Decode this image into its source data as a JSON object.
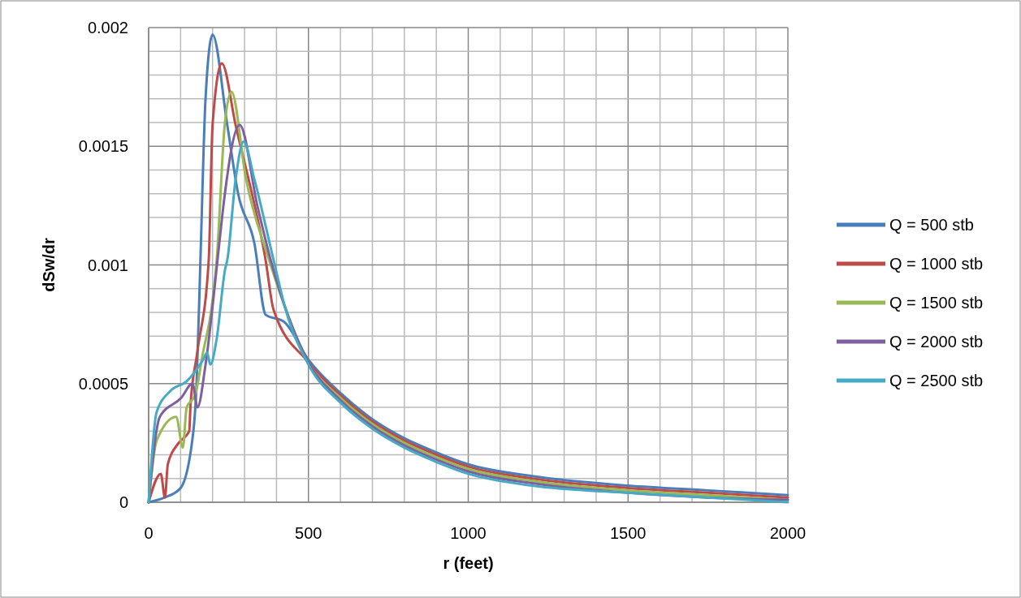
{
  "chart_data": {
    "type": "line",
    "xlabel": "r (feet)",
    "ylabel": "dSw/dr",
    "xlim": [
      0,
      2000
    ],
    "ylim": [
      0,
      0.002
    ],
    "xticks": [
      0,
      {
        "value": 100,
        "label": null
      },
      {
        "value": 200,
        "label": null
      },
      {
        "value": 300,
        "label": null
      },
      {
        "value": 400,
        "label": null
      },
      500,
      {
        "value": 600,
        "label": null
      },
      {
        "value": 700,
        "label": null
      },
      {
        "value": 800,
        "label": null
      },
      {
        "value": 900,
        "label": null
      },
      1000,
      {
        "value": 1100,
        "label": null
      },
      {
        "value": 1200,
        "label": null
      },
      {
        "value": 1300,
        "label": null
      },
      {
        "value": 1400,
        "label": null
      },
      1500,
      {
        "value": 1600,
        "label": null
      },
      {
        "value": 1700,
        "label": null
      },
      {
        "value": 1800,
        "label": null
      },
      {
        "value": 1900,
        "label": null
      },
      2000
    ],
    "yticks": [
      0,
      {
        "value": 0.0001,
        "label": null
      },
      {
        "value": 0.0002,
        "label": null
      },
      {
        "value": 0.0003,
        "label": null
      },
      {
        "value": 0.0004,
        "label": null
      },
      0.0005,
      {
        "value": 0.0006,
        "label": null
      },
      {
        "value": 0.0007,
        "label": null
      },
      {
        "value": 0.0008,
        "label": null
      },
      {
        "value": 0.0009,
        "label": null
      },
      0.001,
      {
        "value": 0.0011,
        "label": null
      },
      {
        "value": 0.0012,
        "label": null
      },
      {
        "value": 0.0013,
        "label": null
      },
      {
        "value": 0.0014,
        "label": null
      },
      0.0015,
      {
        "value": 0.0016,
        "label": null
      },
      {
        "value": 0.0017,
        "label": null
      },
      {
        "value": 0.0018,
        "label": null
      },
      {
        "value": 0.0019,
        "label": null
      },
      0.002
    ],
    "grid": true,
    "legend": "right",
    "marker": "none",
    "line_style": "solid",
    "series": [
      {
        "name": "Q = 500 stb",
        "color": "#4a7ebb",
        "x": [
          0,
          50,
          100,
          140,
          150,
          162,
          178,
          200,
          246,
          280,
          331,
          366,
          424,
          500,
          600,
          700,
          800,
          900,
          1000,
          1200,
          1500,
          1750,
          2000
        ],
        "values": [
          0,
          2e-05,
          6e-05,
          0.0003,
          0.0005,
          0.00102,
          0.0017,
          0.00197,
          0.00159,
          0.0013,
          0.00109,
          0.00079,
          0.00076,
          0.0006,
          0.00046,
          0.00035,
          0.00027,
          0.00021,
          0.00016,
          0.00011,
          7e-05,
          5e-05,
          3e-05
        ]
      },
      {
        "name": "Q = 1000 stb",
        "color": "#be4b48",
        "x": [
          0,
          38,
          51,
          60,
          94,
          127,
          131,
          152,
          188,
          200,
          229,
          272,
          366,
          391,
          500,
          600,
          700,
          800,
          900,
          1000,
          1200,
          1500,
          1750,
          2000
        ],
        "values": [
          0,
          0.00012,
          2e-05,
          0.00016,
          0.00025,
          0.0003,
          0.00041,
          0.00063,
          0.00102,
          0.00159,
          0.00185,
          0.00159,
          0.00102,
          0.00081,
          0.00059,
          0.00045,
          0.00034,
          0.00026,
          0.0002,
          0.00015,
          0.0001,
          6e-05,
          4e-05,
          2e-05
        ]
      },
      {
        "name": "Q = 1500 stb",
        "color": "#98b954",
        "x": [
          0,
          25,
          86,
          107,
          119,
          145,
          170,
          196,
          213,
          238,
          259,
          305,
          377,
          500,
          600,
          700,
          800,
          900,
          1000,
          1200,
          1500,
          1750,
          2000
        ],
        "values": [
          0,
          0.00026,
          0.00036,
          0.00023,
          0.0004,
          0.00045,
          0.00063,
          0.00081,
          0.00102,
          0.00159,
          0.00173,
          0.00136,
          0.00102,
          0.00059,
          0.00044,
          0.00033,
          0.00025,
          0.00019,
          0.00014,
          9e-05,
          5e-05,
          3e-05,
          1e-05
        ]
      },
      {
        "name": "Q = 2000 stb",
        "color": "#7d60a0",
        "x": [
          0,
          35,
          102,
          137,
          153,
          178,
          221,
          234,
          285,
          340,
          382,
          500,
          600,
          700,
          800,
          900,
          1000,
          1200,
          1500,
          1750,
          2000
        ],
        "values": [
          0,
          0.00036,
          0.00044,
          0.0005,
          0.0004,
          0.00058,
          0.00109,
          0.00125,
          0.00159,
          0.00125,
          0.00102,
          0.00059,
          0.00043,
          0.00032,
          0.00024,
          0.00018,
          0.00013,
          8e-05,
          4e-05,
          2e-05,
          1e-05
        ]
      },
      {
        "name": "Q = 2500 stb",
        "color": "#46aac5",
        "x": [
          0,
          25,
          69,
          119,
          170,
          183,
          193,
          213,
          239,
          246,
          272,
          297,
          331,
          391,
          429,
          500,
          600,
          700,
          800,
          900,
          1000,
          1200,
          1500,
          1750,
          2000
        ],
        "values": [
          0,
          0.00038,
          0.00047,
          0.00051,
          0.0006,
          0.00063,
          0.00058,
          0.00069,
          0.00098,
          0.00102,
          0.00136,
          0.00152,
          0.00136,
          0.00102,
          0.00081,
          0.00058,
          0.00042,
          0.00031,
          0.00023,
          0.00017,
          0.00012,
          7e-05,
          4e-05,
          2e-05,
          0
        ]
      }
    ]
  }
}
